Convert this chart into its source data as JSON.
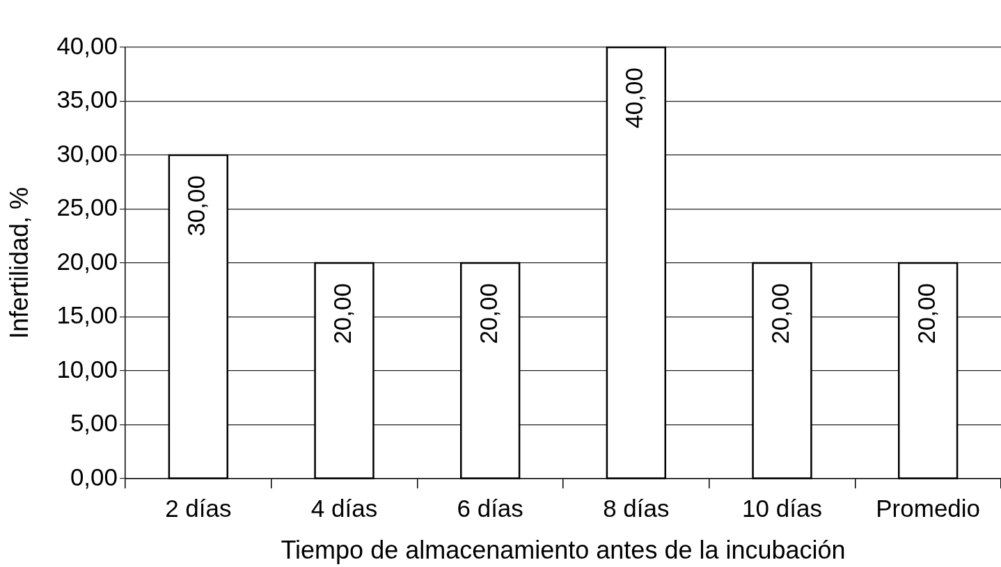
{
  "chart_data": {
    "type": "bar",
    "xlabel": "Tiempo de almacenamiento antes de la incubación",
    "ylabel": "Infertilidad, %",
    "categories": [
      "2 días",
      "4 días",
      "6 días",
      "8 días",
      "10 días",
      "Promedio"
    ],
    "values": [
      30,
      20,
      20,
      40,
      20,
      20
    ],
    "color": "#ffffff",
    "value_labels": [
      "30,00",
      "20,00",
      "20,00",
      "40,00",
      "20,00",
      "20,00"
    ],
    "ylim": [
      0,
      40
    ],
    "yticks": [
      {
        "value": 0,
        "label": "0,00"
      },
      {
        "value": 5,
        "label": "5,00"
      },
      {
        "value": 10,
        "label": "10,00"
      },
      {
        "value": 15,
        "label": "15,00"
      },
      {
        "value": 20,
        "label": "20,00"
      },
      {
        "value": 25,
        "label": "25,00"
      },
      {
        "value": 30,
        "label": "30,00"
      },
      {
        "value": 35,
        "label": "35,00"
      },
      {
        "value": 40,
        "label": "40,00"
      }
    ],
    "grid": "y",
    "legend": false
  }
}
